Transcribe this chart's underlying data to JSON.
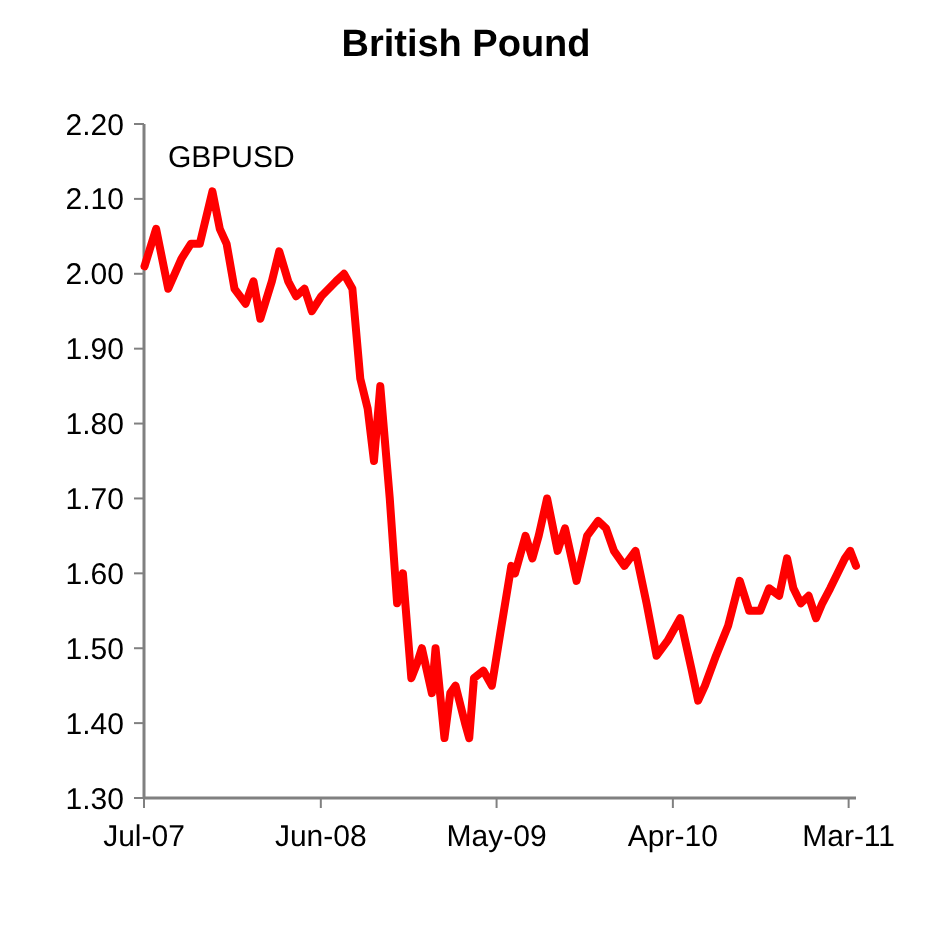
{
  "chart_data": {
    "type": "line",
    "title": "British Pound",
    "x": [
      "2007-07-02",
      "2007-07-24",
      "2007-08-16",
      "2007-09-10",
      "2007-09-28",
      "2007-10-15",
      "2007-11-08",
      "2007-11-22",
      "2007-12-05",
      "2007-12-20",
      "2008-01-10",
      "2008-01-25",
      "2008-02-07",
      "2008-02-29",
      "2008-03-14",
      "2008-03-31",
      "2008-04-15",
      "2008-05-01",
      "2008-05-15",
      "2008-06-02",
      "2008-06-30",
      "2008-07-15",
      "2008-07-31",
      "2008-08-15",
      "2008-08-29",
      "2008-09-10",
      "2008-09-22",
      "2008-10-10",
      "2008-10-24",
      "2008-11-04",
      "2008-11-20",
      "2008-12-01",
      "2008-12-10",
      "2008-12-29",
      "2009-01-05",
      "2009-01-22",
      "2009-02-02",
      "2009-02-12",
      "2009-03-02",
      "2009-03-10",
      "2009-03-19",
      "2009-04-06",
      "2009-04-22",
      "2009-05-08",
      "2009-05-29",
      "2009-06-05",
      "2009-06-25",
      "2009-07-08",
      "2009-07-20",
      "2009-08-05",
      "2009-08-25",
      "2009-09-08",
      "2009-09-30",
      "2009-10-20",
      "2009-11-10",
      "2009-11-25",
      "2009-12-10",
      "2009-12-30",
      "2010-01-20",
      "2010-02-10",
      "2010-03-01",
      "2010-03-22",
      "2010-04-15",
      "2010-05-07",
      "2010-05-19",
      "2010-06-01",
      "2010-06-22",
      "2010-07-15",
      "2010-08-06",
      "2010-08-24",
      "2010-09-14",
      "2010-10-01",
      "2010-10-20",
      "2010-11-04",
      "2010-11-16",
      "2010-11-30",
      "2010-12-15",
      "2010-12-29",
      "2011-01-10",
      "2011-01-25",
      "2011-02-08",
      "2011-02-22",
      "2011-03-04",
      "2011-03-15"
    ],
    "series": [
      {
        "name": "GBPUSD",
        "color": "#ff0000",
        "values": [
          2.01,
          2.06,
          1.98,
          2.02,
          2.04,
          2.04,
          2.11,
          2.06,
          2.04,
          1.98,
          1.96,
          1.99,
          1.94,
          1.99,
          2.03,
          1.99,
          1.97,
          1.98,
          1.95,
          1.97,
          1.99,
          2.0,
          1.98,
          1.86,
          1.82,
          1.75,
          1.85,
          1.7,
          1.56,
          1.6,
          1.46,
          1.48,
          1.5,
          1.44,
          1.5,
          1.38,
          1.44,
          1.45,
          1.4,
          1.38,
          1.46,
          1.47,
          1.45,
          1.52,
          1.61,
          1.6,
          1.65,
          1.62,
          1.65,
          1.7,
          1.63,
          1.66,
          1.59,
          1.65,
          1.67,
          1.66,
          1.63,
          1.61,
          1.63,
          1.56,
          1.49,
          1.51,
          1.54,
          1.47,
          1.43,
          1.45,
          1.49,
          1.53,
          1.59,
          1.55,
          1.55,
          1.58,
          1.57,
          1.62,
          1.58,
          1.56,
          1.57,
          1.54,
          1.56,
          1.58,
          1.6,
          1.62,
          1.63,
          1.61
        ]
      }
    ],
    "xlim": [
      "2007-07-01",
      "2011-03-15"
    ],
    "xticks": [
      {
        "value": "2007-07-01",
        "label": "Jul-07"
      },
      {
        "value": "2008-06-01",
        "label": "Jun-08"
      },
      {
        "value": "2009-05-01",
        "label": "May-09"
      },
      {
        "value": "2010-04-01",
        "label": "Apr-10"
      },
      {
        "value": "2011-03-01",
        "label": "Mar-11"
      }
    ],
    "ylim": [
      1.3,
      2.2
    ],
    "yticks": [
      {
        "value": 1.3,
        "label": "1.30"
      },
      {
        "value": 1.4,
        "label": "1.40"
      },
      {
        "value": 1.5,
        "label": "1.50"
      },
      {
        "value": 1.6,
        "label": "1.60"
      },
      {
        "value": 1.7,
        "label": "1.70"
      },
      {
        "value": 1.8,
        "label": "1.80"
      },
      {
        "value": 1.9,
        "label": "1.90"
      },
      {
        "value": 2.0,
        "label": "2.00"
      },
      {
        "value": 2.1,
        "label": "2.10"
      },
      {
        "value": 2.2,
        "label": "2.20"
      }
    ],
    "grid": false,
    "legend": "top left",
    "line_style": "solid"
  }
}
